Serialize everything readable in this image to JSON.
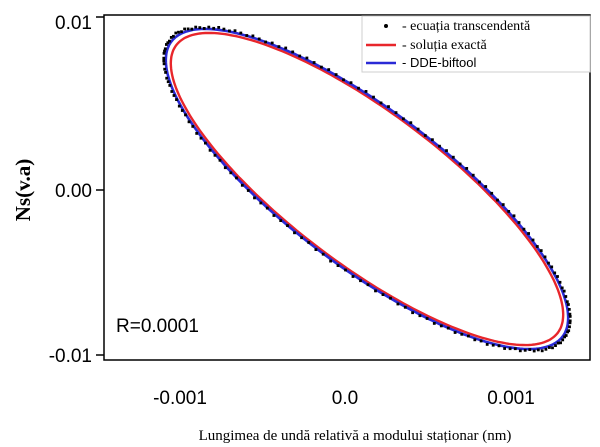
{
  "chart_data": {
    "type": "line",
    "title": "",
    "xlabel": "Lungimea de undă relativă a modului staționar (nm)",
    "ylabel": "Ns(v.a)",
    "xlim": [
      -0.00155,
      0.00155
    ],
    "ylim": [
      -0.0104,
      0.0104
    ],
    "xticks": [
      -0.001,
      0.0,
      0.001
    ],
    "xtick_labels": [
      "-0.001",
      "0.0",
      "0.001"
    ],
    "yticks": [
      0.01,
      0.0,
      -0.01
    ],
    "ytick_labels": [
      "0.01",
      "0.00",
      "-0.01"
    ],
    "annotation": "R=0.0001",
    "grid": false,
    "legend_position": "top-right",
    "series": [
      {
        "name": "- ecuația transcendentă",
        "style": "dots",
        "color": "#000000",
        "ellipse": {
          "center": [
            0.000175,
            0.0
          ],
          "semi_major": 0.00122,
          "semi_minor": 0.0096,
          "rotation_deg": -28
        }
      },
      {
        "name": "- soluția exactă",
        "style": "line",
        "color": "#e8262b",
        "ellipse": {
          "center": [
            0.000175,
            0.0
          ],
          "semi_major": 0.00118,
          "semi_minor": 0.0094,
          "rotation_deg": -28
        }
      },
      {
        "name": "- DDE-biftool",
        "style": "line",
        "color": "#2a2ad6",
        "ellipse": {
          "center": [
            0.000175,
            0.0
          ],
          "semi_major": 0.00122,
          "semi_minor": 0.0096,
          "rotation_deg": -28
        }
      }
    ]
  }
}
